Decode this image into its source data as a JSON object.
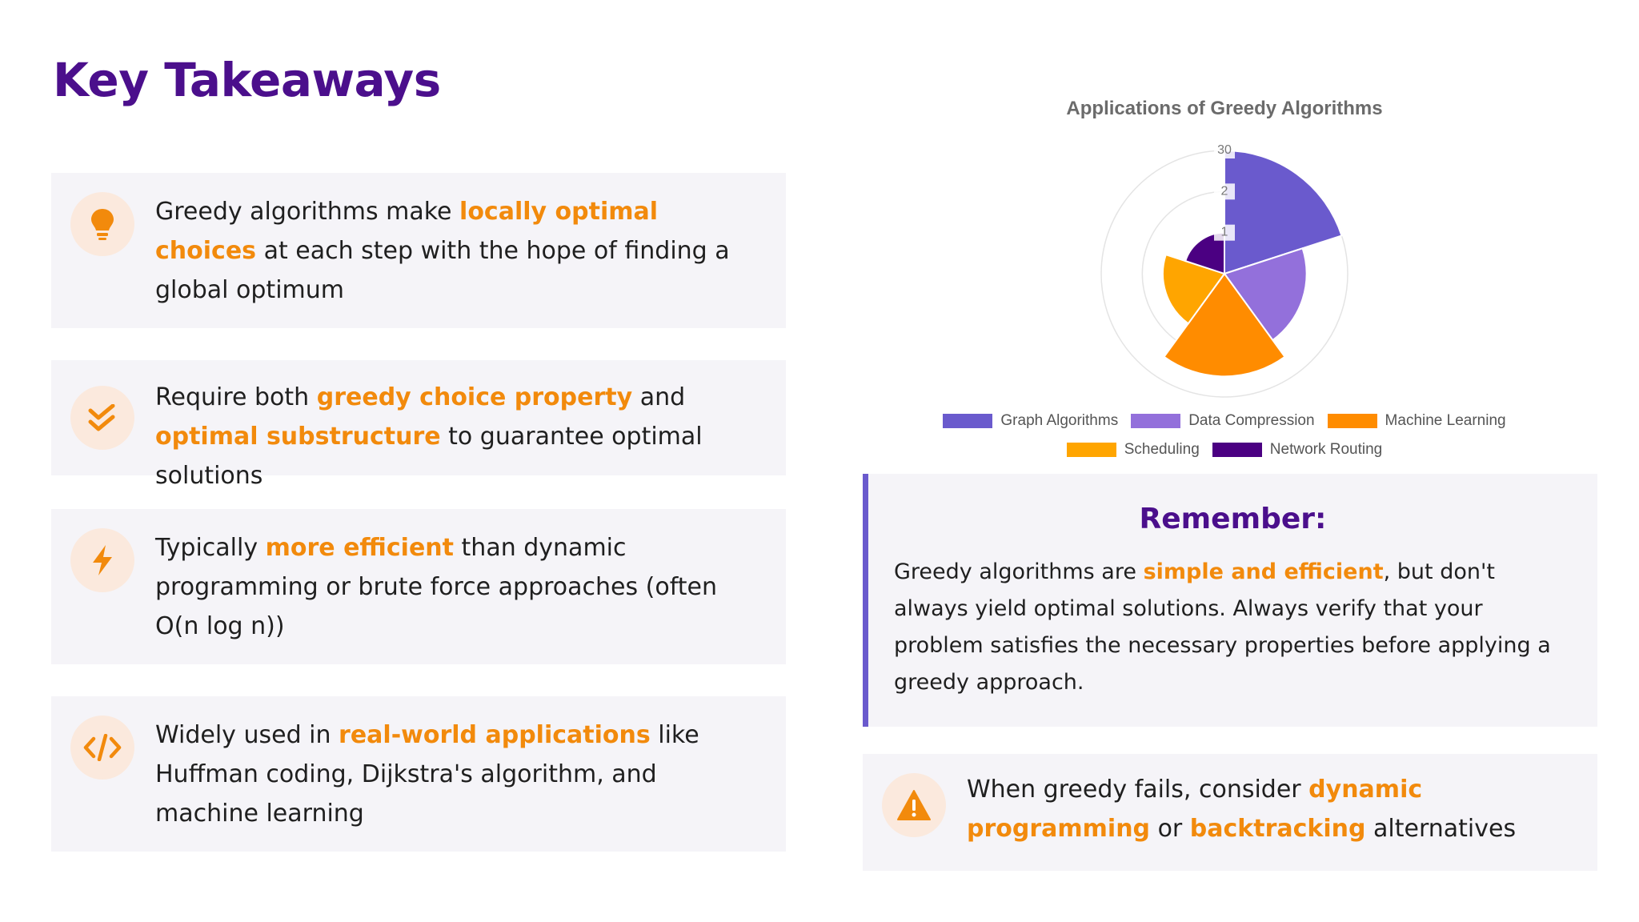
{
  "page_title": "Key Takeaways",
  "takeaways": [
    {
      "icon": "lightbulb-icon",
      "before": "Greedy algorithms make ",
      "highlight": "locally optimal choices",
      "after": " at each step with the hope of finding a global optimum"
    },
    {
      "icon": "double-check-icon",
      "before": "Require both ",
      "highlight": "greedy choice property",
      "middle": " and ",
      "highlight2": "optimal substructure",
      "after": " to guarantee optimal solutions"
    },
    {
      "icon": "lightning-icon",
      "before": "Typically ",
      "highlight": "more efficient",
      "after": " than dynamic programming or brute force approaches (often O(n log n))"
    },
    {
      "icon": "code-icon",
      "before": "Widely used in ",
      "highlight": "real-world applications",
      "after": " like Huffman coding, Dijkstra's algorithm, and machine learning"
    }
  ],
  "chart_data": {
    "type": "polarArea",
    "title": "Applications of Greedy Algorithms",
    "categories": [
      "Graph Algorithms",
      "Data Compression",
      "Machine Learning",
      "Scheduling",
      "Network Routing"
    ],
    "values": [
      30,
      20,
      25,
      15,
      10
    ],
    "colors": [
      "#6a5acd",
      "#9370db",
      "#ff8c00",
      "#ffa500",
      "#4b0082"
    ],
    "r_ticks": [
      "1",
      "2",
      "30"
    ],
    "r_max": 30
  },
  "remember": {
    "heading": "Remember:",
    "before": "Greedy algorithms are ",
    "highlight": "simple and efficient",
    "after": ", but don't always yield optimal solutions. Always verify that your problem satisfies the necessary properties before applying a greedy approach."
  },
  "warning": {
    "icon": "warning-icon",
    "before": "When greedy fails, consider ",
    "highlight": "dynamic programming",
    "middle": " or ",
    "highlight2": "backtracking",
    "after": " alternatives"
  },
  "colors": {
    "title": "#4b0f8c",
    "highlight": "#f28a0c",
    "card_bg": "#f5f4f8",
    "icon_bg": "#fbe9dd",
    "accent_bar": "#6a5acd"
  }
}
